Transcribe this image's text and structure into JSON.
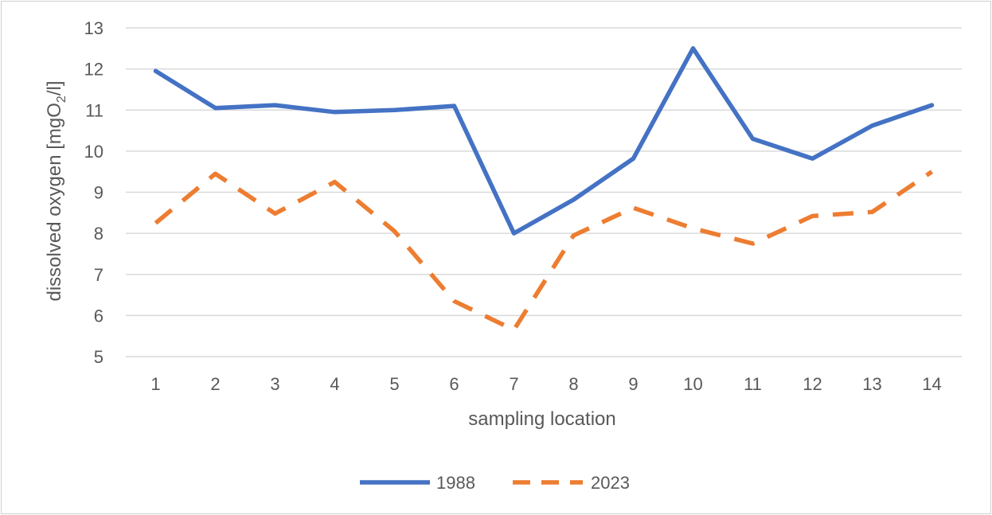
{
  "chart_data": {
    "type": "line",
    "title": "",
    "xlabel": "sampling location",
    "ylabel_prefix": "dissolved oxygen [mgO",
    "ylabel_sub": "2",
    "ylabel_suffix": "/l]",
    "categories": [
      "1",
      "2",
      "3",
      "4",
      "5",
      "6",
      "7",
      "8",
      "9",
      "10",
      "11",
      "12",
      "13",
      "14"
    ],
    "ylim": [
      5,
      13
    ],
    "yticks": [
      5,
      6,
      7,
      8,
      9,
      10,
      11,
      12,
      13
    ],
    "grid": true,
    "legend_position": "bottom",
    "series": [
      {
        "name": "1988",
        "color": "#4472C4",
        "style": "solid",
        "values": [
          11.95,
          11.05,
          11.12,
          10.95,
          11.0,
          11.1,
          8.0,
          8.82,
          9.82,
          12.5,
          10.3,
          9.82,
          10.62,
          11.12
        ]
      },
      {
        "name": "2023",
        "color": "#ED7D31",
        "style": "dashed",
        "values": [
          8.25,
          9.45,
          8.48,
          9.25,
          8.05,
          6.35,
          5.65,
          7.95,
          8.62,
          8.12,
          7.75,
          8.42,
          8.52,
          9.5
        ]
      }
    ]
  }
}
